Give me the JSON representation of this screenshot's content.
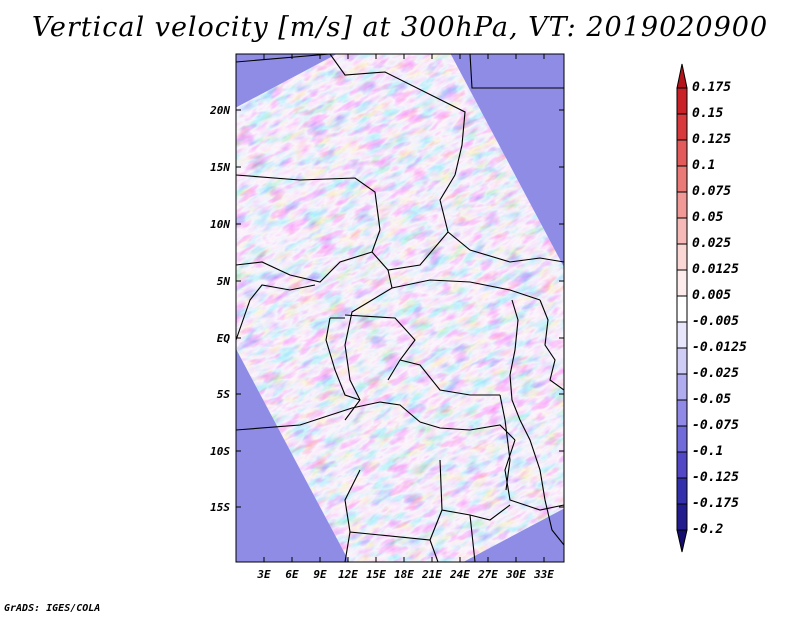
{
  "title": "Vertical velocity [m/s] at 300hPa, VT: 2019020900",
  "lat_labels": [
    "20N",
    "15N",
    "10N",
    "5N",
    "EQ",
    "5S",
    "10S",
    "15S"
  ],
  "lon_labels": [
    "3E",
    "6E",
    "9E",
    "12E",
    "15E",
    "18E",
    "21E",
    "24E",
    "27E",
    "30E",
    "33E"
  ],
  "colorbar": {
    "labels": [
      "0.175",
      "0.15",
      "0.125",
      "0.1",
      "0.075",
      "0.05",
      "0.025",
      "0.0125",
      "0.005",
      "-0.005",
      "-0.0125",
      "-0.025",
      "-0.05",
      "-0.075",
      "-0.1",
      "-0.125",
      "-0.175",
      "-0.2"
    ],
    "colors": [
      "#b3151b",
      "#c92127",
      "#d8393d",
      "#e25a5a",
      "#ea7a78",
      "#f19997",
      "#f6b9b7",
      "#fad6d4",
      "#fdeceb",
      "#ffffff",
      "#e8e6fb",
      "#cfcdf6",
      "#b1acef",
      "#9189e6",
      "#716ad9",
      "#5248c6",
      "#3430ab",
      "#231c8f",
      "#150d70"
    ]
  },
  "credit": "GrADS: IGES/COLA"
}
